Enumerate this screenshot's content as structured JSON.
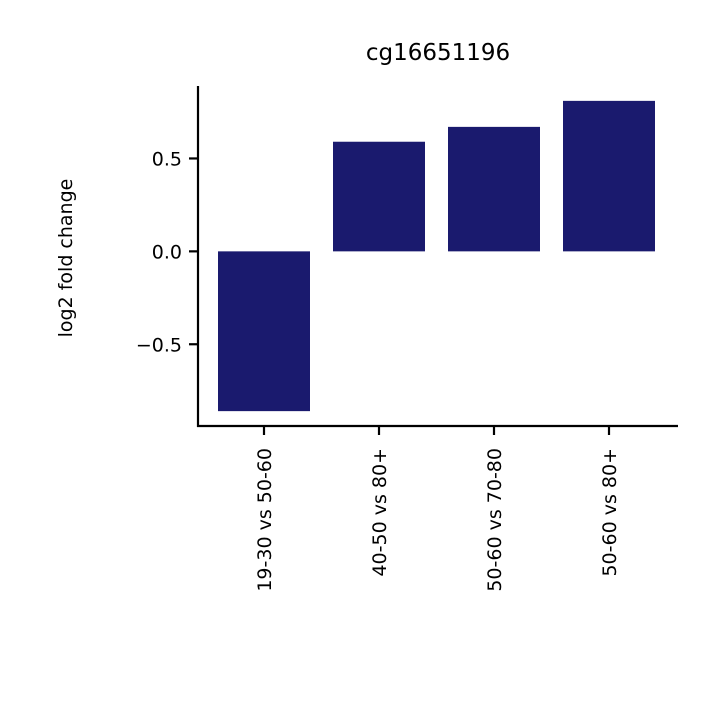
{
  "chart_data": {
    "type": "bar",
    "title": "cg16651196",
    "xlabel": "",
    "ylabel": "log2 fold change",
    "categories": [
      "19-30 vs 50-60",
      "40-50 vs 80+",
      "50-60 vs 70-80",
      "50-60 vs 80+"
    ],
    "values": [
      -0.86,
      0.59,
      0.67,
      0.81
    ],
    "ylim": [
      -0.94,
      0.89
    ],
    "yticks": [
      -0.5,
      0.0,
      0.5
    ],
    "ytick_labels": [
      "−0.5",
      "0.0",
      "0.5"
    ],
    "bar_color": "#1a1a6e",
    "grid": false,
    "legend": "none"
  }
}
